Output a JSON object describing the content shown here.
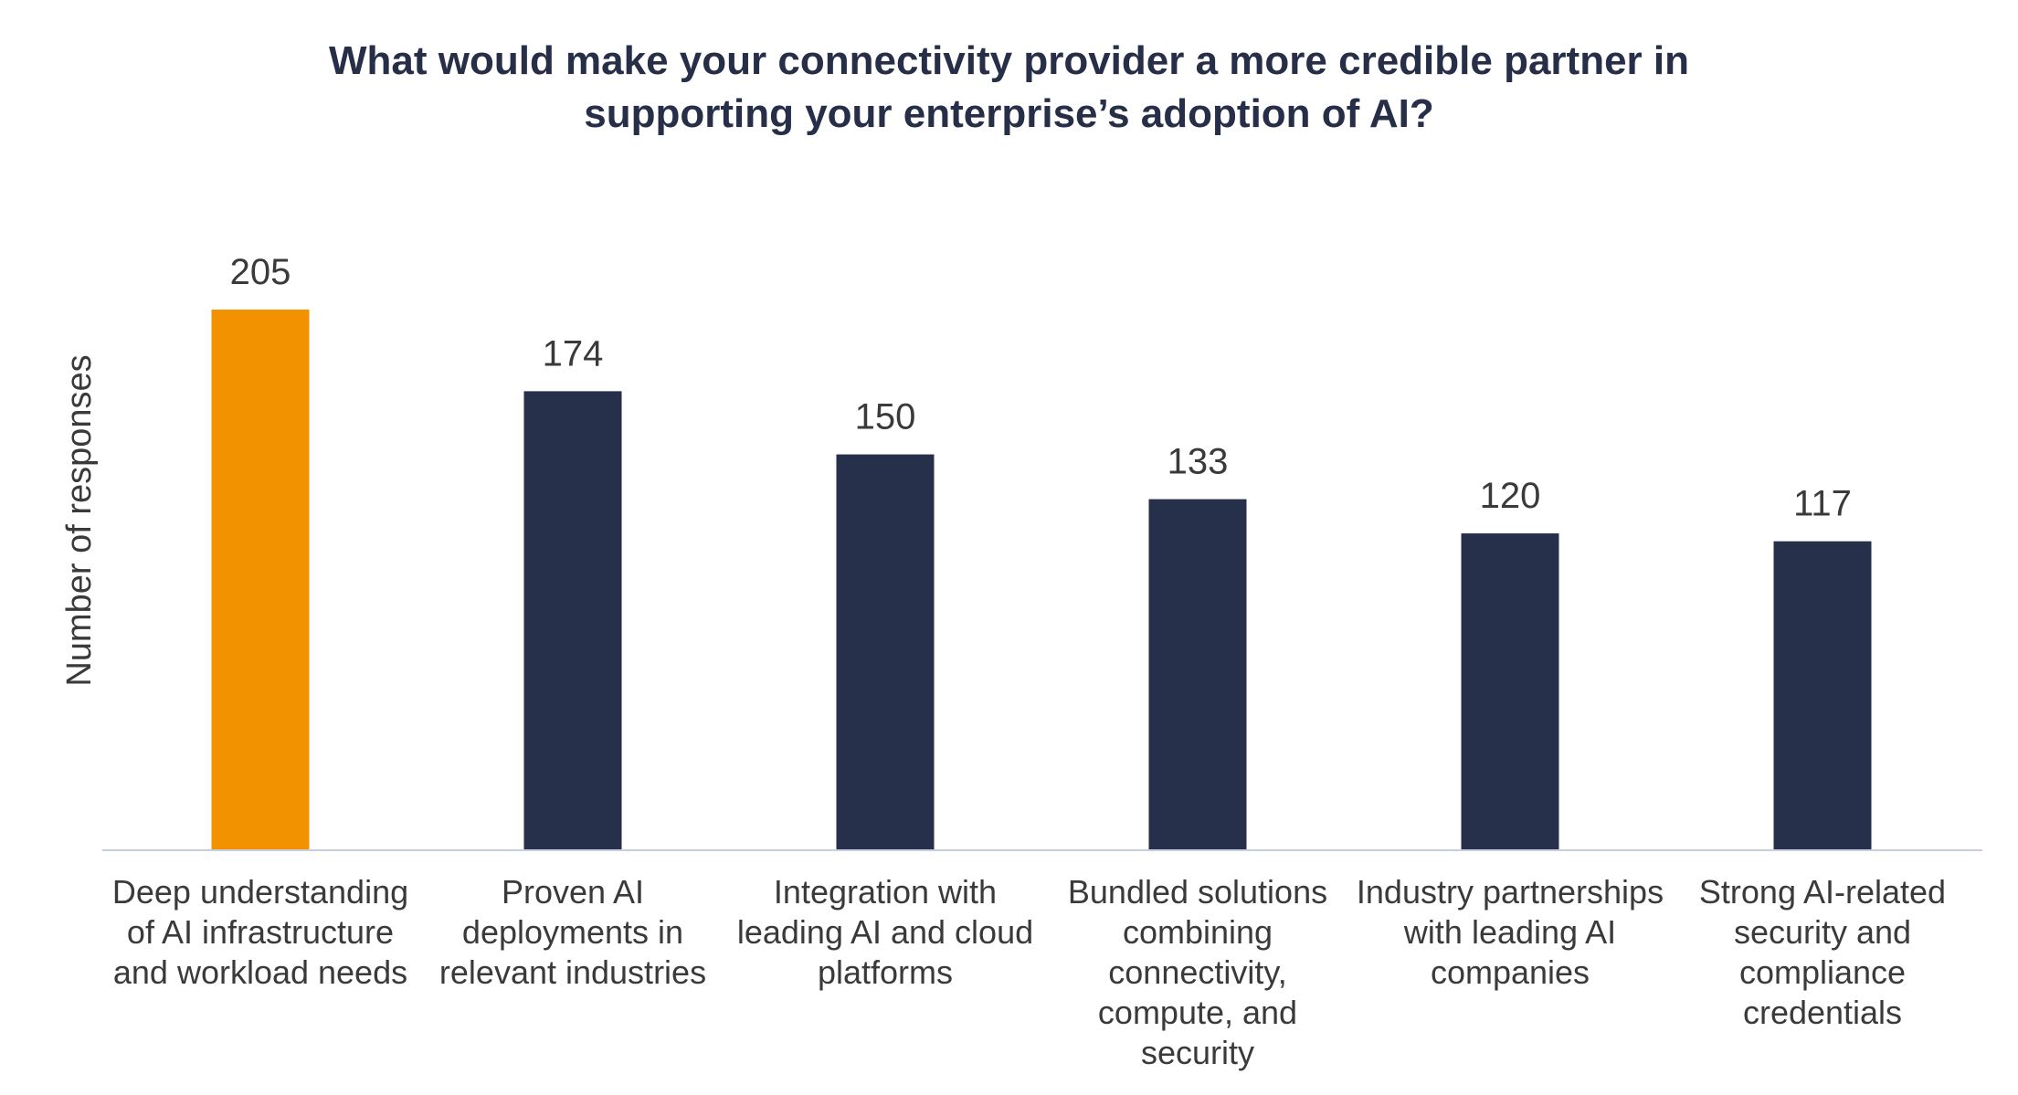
{
  "chart_data": {
    "type": "bar",
    "title": [
      "What would make your connectivity provider a more credible partner in",
      "supporting your enterprise’s adoption of AI?"
    ],
    "ylabel": "Number of responses",
    "xlabel": "",
    "ylim": [
      0,
      205
    ],
    "grid": false,
    "legend": "none",
    "categories": [
      [
        "Deep understanding",
        "of AI infrastructure",
        "and workload needs"
      ],
      [
        "Proven AI",
        "deployments in",
        "relevant industries"
      ],
      [
        "Integration with",
        "leading AI and cloud",
        "platforms"
      ],
      [
        "Bundled solutions",
        "combining",
        "connectivity,",
        "compute, and",
        "security"
      ],
      [
        "Industry partnerships",
        "with leading AI",
        "companies"
      ],
      [
        "Strong AI-related",
        "security and",
        "compliance",
        "credentials"
      ]
    ],
    "values": [
      205,
      174,
      150,
      133,
      120,
      117
    ],
    "colors": {
      "highlight": "#f39200",
      "default": "#27304a",
      "axis": "#c9cde0"
    },
    "highlight_index": 0
  }
}
